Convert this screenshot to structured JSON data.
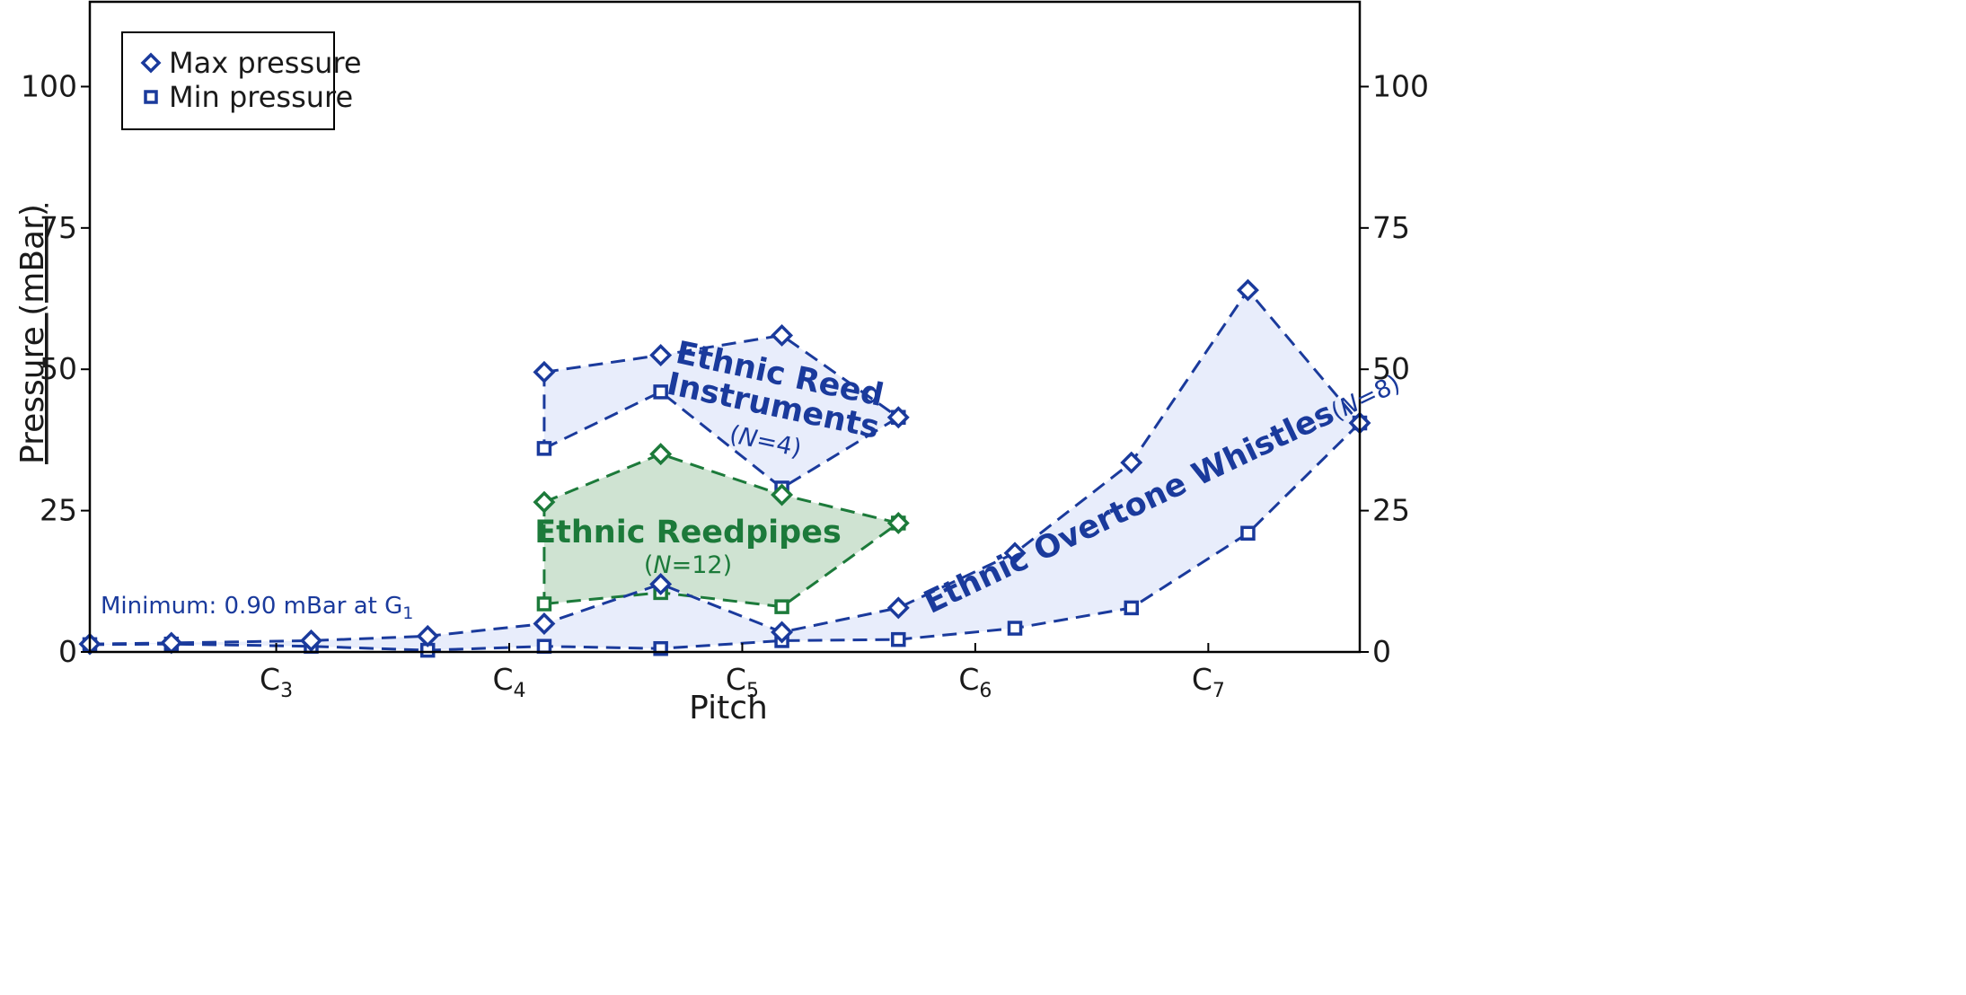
{
  "chart_data": {
    "type": "line",
    "xlabel": "Pitch",
    "ylabel": "Pressure (mBar)",
    "x_ticks": [
      {
        "note": "C",
        "octave": "3",
        "pos": 3
      },
      {
        "note": "C",
        "octave": "4",
        "pos": 4
      },
      {
        "note": "C",
        "octave": "5",
        "pos": 5
      },
      {
        "note": "C",
        "octave": "6",
        "pos": 6
      },
      {
        "note": "C",
        "octave": "7",
        "pos": 7
      }
    ],
    "xlim": [
      2.2,
      7.65
    ],
    "y_ticks": [
      "0",
      "25",
      "50",
      "75",
      "100"
    ],
    "ylim": [
      0,
      115
    ],
    "y2_ticks": [
      "0",
      "25",
      "50",
      "75",
      "100"
    ],
    "legend": {
      "position": "top-left",
      "entries": [
        {
          "label": "Max pressure",
          "marker": "diamond"
        },
        {
          "label": "Min pressure",
          "marker": "square"
        }
      ]
    },
    "colors": {
      "blue_line": "#1a3a9c",
      "blue_fill": "#e8edfb",
      "green_line": "#1c7a3a",
      "green_fill": "#cfe3d2"
    },
    "groups": [
      {
        "title_lines": [
          "Ethnic Reed",
          "Instruments"
        ],
        "n_var": "N",
        "n_value": "=4",
        "color": "blue",
        "max": {
          "x": [
            4.15,
            4.65,
            5.17,
            5.67
          ],
          "y": [
            49.5,
            52.5,
            56.0,
            41.5
          ]
        },
        "min": {
          "x": [
            4.15,
            4.65,
            5.17,
            5.67
          ],
          "y": [
            36.0,
            46.0,
            29.0,
            41.5
          ]
        }
      },
      {
        "title_lines": [
          "Ethnic Reedpipes"
        ],
        "n_var": "N",
        "n_value": "=12",
        "color": "green",
        "max": {
          "x": [
            4.15,
            4.65,
            5.17,
            5.67
          ],
          "y": [
            26.5,
            35.0,
            27.8,
            22.8
          ]
        },
        "min": {
          "x": [
            4.15,
            4.65,
            5.17,
            5.67
          ],
          "y": [
            8.5,
            10.5,
            8.0,
            22.8
          ]
        }
      },
      {
        "title_lines": [
          "Ethnic Overtone Whistles"
        ],
        "n_var": "N",
        "n_value": "=8",
        "color": "blue",
        "max": {
          "x": [
            2.2,
            2.55,
            3.15,
            3.65,
            4.15,
            4.65,
            5.17,
            5.67,
            6.17,
            6.67,
            7.17,
            7.65
          ],
          "y": [
            1.4,
            1.6,
            2.0,
            2.8,
            5.0,
            12.0,
            3.5,
            7.8,
            17.5,
            33.5,
            64.0,
            40.5
          ]
        },
        "min": {
          "x": [
            2.2,
            2.55,
            3.15,
            3.65,
            4.15,
            4.65,
            5.17,
            5.67,
            6.17,
            6.67,
            7.17,
            7.65
          ],
          "y": [
            1.3,
            1.4,
            1.0,
            0.3,
            1.0,
            0.6,
            2.0,
            2.2,
            4.2,
            7.8,
            21.0,
            40.5
          ]
        }
      }
    ],
    "annotation": {
      "text": "Minimum: 0.90 mBar at G",
      "sub": "1"
    }
  }
}
